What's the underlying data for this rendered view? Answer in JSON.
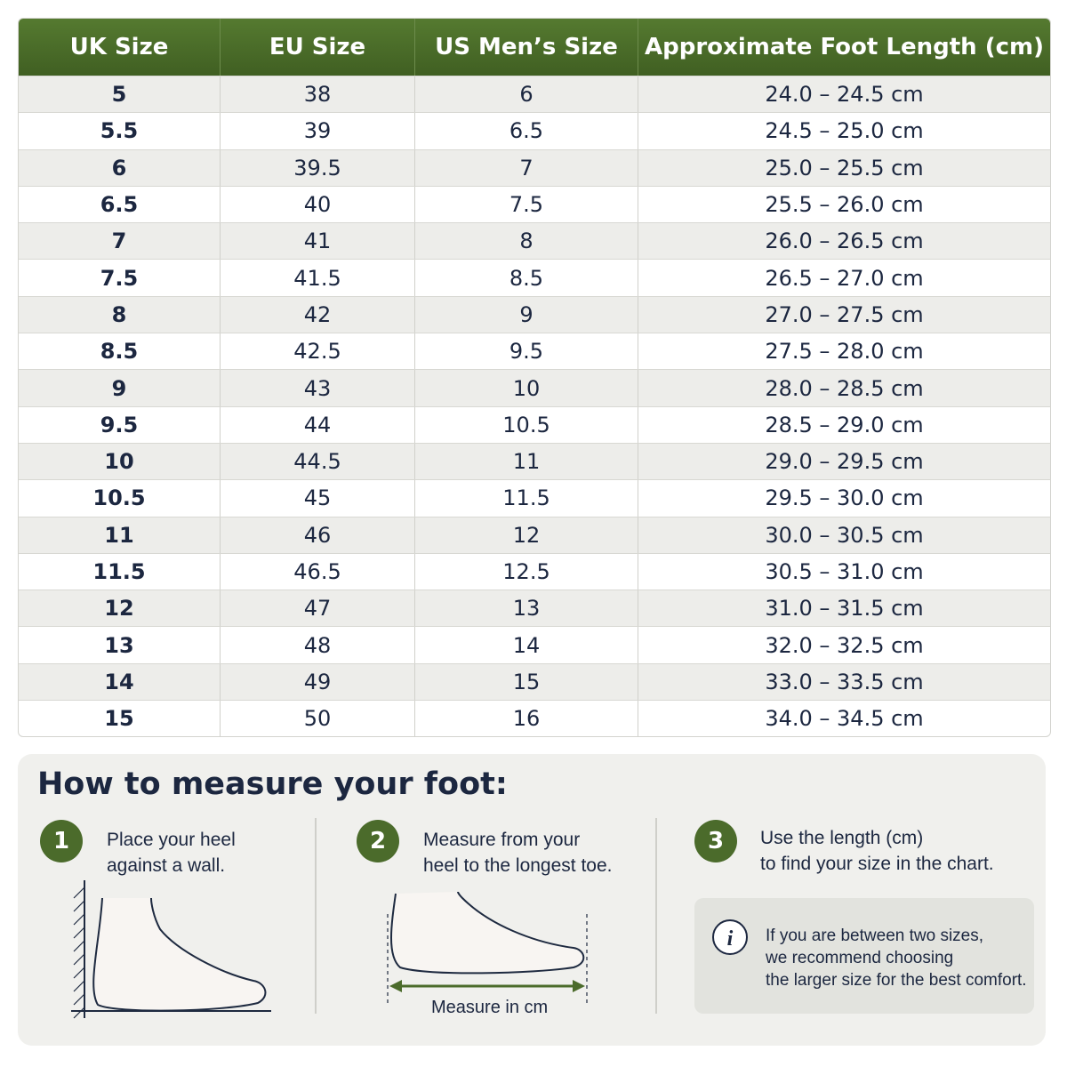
{
  "table": {
    "header": [
      "UK Size",
      "EU Size",
      "US Men’s Size",
      "Approximate Foot Length (cm)"
    ],
    "rows": [
      [
        "5",
        "38",
        "6",
        "24.0 – 24.5 cm"
      ],
      [
        "5.5",
        "39",
        "6.5",
        "24.5 – 25.0 cm"
      ],
      [
        "6",
        "39.5",
        "7",
        "25.0 – 25.5 cm"
      ],
      [
        "6.5",
        "40",
        "7.5",
        "25.5 – 26.0 cm"
      ],
      [
        "7",
        "41",
        "8",
        "26.0 – 26.5 cm"
      ],
      [
        "7.5",
        "41.5",
        "8.5",
        "26.5 – 27.0 cm"
      ],
      [
        "8",
        "42",
        "9",
        "27.0 – 27.5 cm"
      ],
      [
        "8.5",
        "42.5",
        "9.5",
        "27.5 – 28.0 cm"
      ],
      [
        "9",
        "43",
        "10",
        "28.0 – 28.5 cm"
      ],
      [
        "9.5",
        "44",
        "10.5",
        "28.5 – 29.0 cm"
      ],
      [
        "10",
        "44.5",
        "11",
        "29.0 – 29.5 cm"
      ],
      [
        "10.5",
        "45",
        "11.5",
        "29.5 – 30.0 cm"
      ],
      [
        "11",
        "46",
        "12",
        "30.0 – 30.5 cm"
      ],
      [
        "11.5",
        "46.5",
        "12.5",
        "30.5 – 31.0 cm"
      ],
      [
        "12",
        "47",
        "13",
        "31.0 – 31.5 cm"
      ],
      [
        "13",
        "48",
        "14",
        "32.0 – 32.5 cm"
      ],
      [
        "14",
        "49",
        "15",
        "33.0 – 33.5 cm"
      ],
      [
        "15",
        "50",
        "16",
        "34.0 – 34.5 cm"
      ]
    ]
  },
  "guide": {
    "title": "How to measure your foot:",
    "steps": [
      {
        "number": "1",
        "text": [
          "Place your heel",
          "against a wall."
        ]
      },
      {
        "number": "2",
        "text": [
          "Measure from your",
          "heel to the longest toe."
        ]
      },
      {
        "number": "3",
        "text": [
          "Use the length (cm)",
          "to find your size in the chart."
        ]
      }
    ],
    "measure_label": "Measure in cm",
    "note": [
      "If you are between two sizes,",
      "we recommend choosing",
      "the larger size for the best comfort."
    ]
  }
}
